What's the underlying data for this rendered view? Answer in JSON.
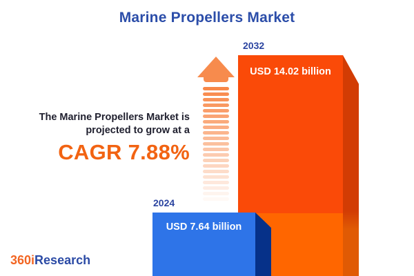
{
  "title": "Marine Propellers Market",
  "chart_data": {
    "type": "bar",
    "categories": [
      "2024",
      "2032"
    ],
    "values": [
      7.64,
      14.02
    ],
    "unit": "USD billion",
    "title": "Marine Propellers Market",
    "value_labels": [
      "USD 7.64 billion",
      "USD 14.02 billion"
    ],
    "cagr_percent": 7.88,
    "legend_position": "none",
    "grid": false
  },
  "bars": [
    {
      "year": "2024",
      "label": "USD 7.64 billion",
      "front_color": "#2e74e8",
      "side_color": "#063189"
    },
    {
      "year": "2032",
      "label": "USD 14.02 billion",
      "front_color_top": "#fa4a08",
      "front_color_bottom": "#ff6600",
      "side_color_top": "#d23c04",
      "side_color_bottom": "#e05a04"
    }
  ],
  "growth_note": {
    "line1": "The Marine Propellers Market is",
    "line2": "projected to grow at a",
    "cagr": "CAGR 7.88%",
    "cagr_color": "#f26312",
    "text_color": "#20202f"
  },
  "arrow": {
    "icon": "up-arrow-fading-stripes",
    "color": "#f78b4d"
  },
  "logo": {
    "prefix": "360i",
    "suffix": "Research",
    "prefix_color": "#f26522",
    "suffix_color": "#2b4aa5"
  },
  "colors": {
    "background": "#ffffff",
    "title_blue": "#2b4da9",
    "year_label_blue": "#2b44a0"
  }
}
